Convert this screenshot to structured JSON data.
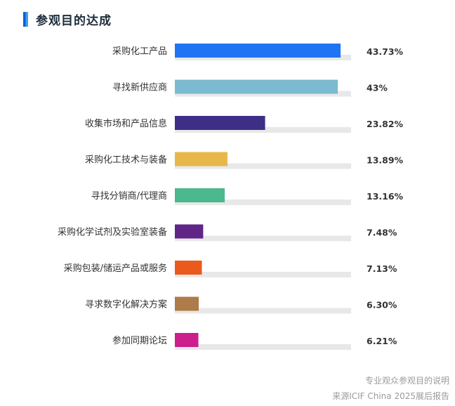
{
  "header": {
    "title": "参观目的达成",
    "accent_color": "#1a73e8"
  },
  "chart_data": {
    "type": "bar",
    "orientation": "horizontal",
    "title": "参观目的达成",
    "categories": [
      "采购化工产品",
      "寻找新供应商",
      "收集市场和产品信息",
      "采购化工技术与装备",
      "寻找分销商/代理商",
      "采购化学试剂及实验室装备",
      "采购包装/储运产品或服务",
      "寻求数字化解决方案",
      "参加同期论坛"
    ],
    "values": [
      43.73,
      43,
      23.82,
      13.89,
      13.16,
      7.48,
      7.13,
      6.3,
      6.21
    ],
    "value_labels": [
      "43.73%",
      "43%",
      "23.82%",
      "13.89%",
      "13.16%",
      "7.48%",
      "7.13%",
      "6.30%",
      "6.21%"
    ],
    "colors": [
      "#1f74f3",
      "#7bbad0",
      "#3e2e86",
      "#e8b74a",
      "#4cb88d",
      "#5f2587",
      "#ea5a1c",
      "#ae7b4a",
      "#cc1f8c"
    ],
    "track_color": "#e8e8e8",
    "xlim": [
      0,
      46.5
    ],
    "grid": false,
    "legend": false
  },
  "footer": {
    "line1": "专业观众参观目的说明",
    "line2": "来源ICIF China 2025展后报告"
  }
}
